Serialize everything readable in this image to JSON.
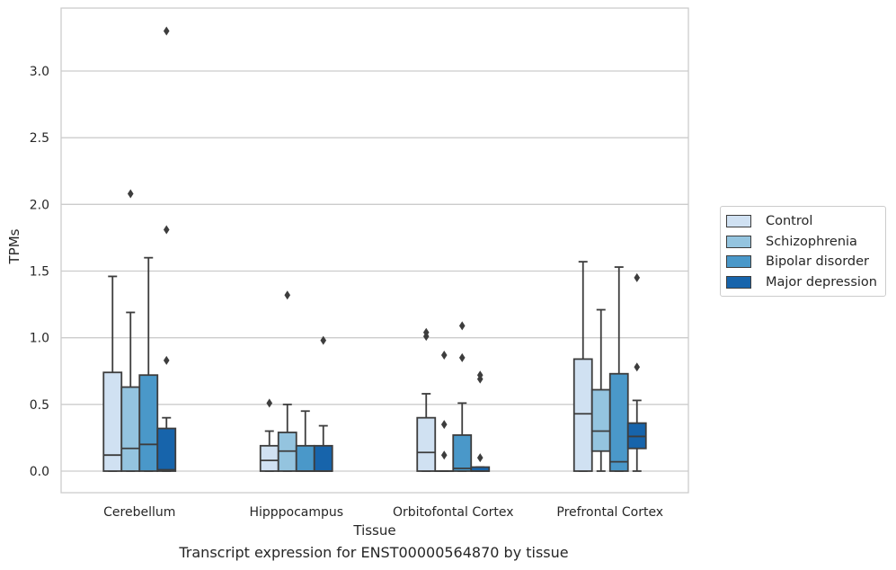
{
  "caption": "Transcript expression for ENST00000564870 by tissue",
  "chart_data": {
    "type": "box",
    "xlabel": "Tissue",
    "ylabel": "TPMs",
    "ylim": [
      -0.16,
      3.47
    ],
    "yticks": [
      0.0,
      0.5,
      1.0,
      1.5,
      2.0,
      2.5,
      3.0
    ],
    "ytick_labels": [
      "0.0",
      "0.5",
      "1.0",
      "1.5",
      "2.0",
      "2.5",
      "3.0"
    ],
    "grid": true,
    "legend_position": "right",
    "categories": [
      "Cerebellum",
      "Hipppocampus",
      "Orbitofontal Cortex",
      "Prefrontal Cortex"
    ],
    "series": [
      {
        "name": "Control",
        "color": "#d0e1f2",
        "boxes": [
          {
            "min": 0.0,
            "q1": 0.0,
            "median": 0.12,
            "q3": 0.74,
            "max": 1.46,
            "outliers": []
          },
          {
            "min": 0.0,
            "q1": 0.0,
            "median": 0.08,
            "q3": 0.19,
            "max": 0.3,
            "outliers": [
              0.51
            ]
          },
          {
            "min": 0.0,
            "q1": 0.0,
            "median": 0.14,
            "q3": 0.4,
            "max": 0.58,
            "outliers": [
              1.01,
              1.04
            ]
          },
          {
            "min": 0.0,
            "q1": 0.0,
            "median": 0.43,
            "q3": 0.84,
            "max": 1.57,
            "outliers": []
          }
        ]
      },
      {
        "name": "Schizophrenia",
        "color": "#94c4df",
        "boxes": [
          {
            "min": 0.0,
            "q1": 0.0,
            "median": 0.17,
            "q3": 0.63,
            "max": 1.19,
            "outliers": [
              2.08
            ]
          },
          {
            "min": 0.0,
            "q1": 0.0,
            "median": 0.15,
            "q3": 0.29,
            "max": 0.5,
            "outliers": [
              1.32
            ]
          },
          {
            "min": 0.0,
            "q1": 0.0,
            "median": 0.0,
            "q3": 0.0,
            "max": 0.0,
            "outliers": [
              0.12,
              0.35,
              0.87
            ]
          },
          {
            "min": 0.0,
            "q1": 0.15,
            "median": 0.3,
            "q3": 0.61,
            "max": 1.21,
            "outliers": []
          }
        ]
      },
      {
        "name": "Bipolar disorder",
        "color": "#4a98c9",
        "boxes": [
          {
            "min": 0.0,
            "q1": 0.0,
            "median": 0.2,
            "q3": 0.72,
            "max": 1.6,
            "outliers": []
          },
          {
            "min": 0.0,
            "q1": 0.0,
            "median": 0.0,
            "q3": 0.19,
            "max": 0.45,
            "outliers": []
          },
          {
            "min": 0.0,
            "q1": 0.0,
            "median": 0.02,
            "q3": 0.27,
            "max": 0.51,
            "outliers": [
              0.85,
              1.09
            ]
          },
          {
            "min": 0.0,
            "q1": 0.0,
            "median": 0.07,
            "q3": 0.73,
            "max": 1.53,
            "outliers": []
          }
        ]
      },
      {
        "name": "Major depression",
        "color": "#1764ab",
        "boxes": [
          {
            "min": 0.0,
            "q1": 0.0,
            "median": 0.01,
            "q3": 0.32,
            "max": 0.4,
            "outliers": [
              0.83,
              1.81,
              3.3
            ]
          },
          {
            "min": 0.0,
            "q1": 0.0,
            "median": 0.0,
            "q3": 0.19,
            "max": 0.34,
            "outliers": [
              0.98
            ]
          },
          {
            "min": 0.0,
            "q1": 0.0,
            "median": 0.0,
            "q3": 0.03,
            "max": 0.03,
            "outliers": [
              0.1,
              0.69,
              0.72
            ]
          },
          {
            "min": 0.0,
            "q1": 0.17,
            "median": 0.26,
            "q3": 0.36,
            "max": 0.53,
            "outliers": [
              0.78,
              1.45
            ]
          }
        ]
      }
    ]
  }
}
